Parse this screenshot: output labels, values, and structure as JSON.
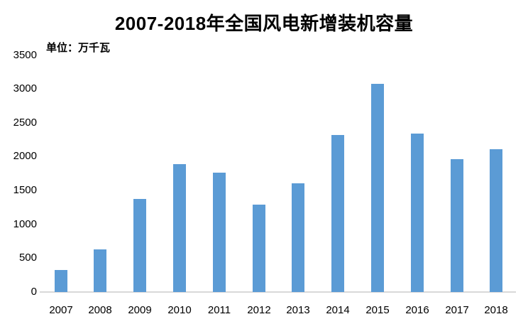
{
  "header": {
    "title": "2007-2018年全国风电新增装机容量",
    "unit_label": "单位：万千瓦"
  },
  "colors": {
    "bar": "#5B9BD5",
    "axis_line": "#D9D9D9",
    "text": "#000000",
    "background": "#FFFFFF"
  },
  "chart_data": {
    "type": "bar",
    "title": "2007-2018年全国风电新增装机容量",
    "unit": "万千瓦",
    "categories": [
      "2007",
      "2008",
      "2009",
      "2010",
      "2011",
      "2012",
      "2013",
      "2014",
      "2015",
      "2016",
      "2017",
      "2018"
    ],
    "values": [
      330,
      625,
      1380,
      1893,
      1763,
      1296,
      1610,
      2320,
      3075,
      2337,
      1966,
      2114
    ],
    "series_name": "风电新增装机容量",
    "xlabel": "",
    "ylabel": "单位：万千瓦",
    "ylim": [
      0,
      3500
    ],
    "yticks": [
      0,
      500,
      1000,
      1500,
      2000,
      2500,
      3000,
      3500
    ],
    "grid": false,
    "legend": false
  }
}
